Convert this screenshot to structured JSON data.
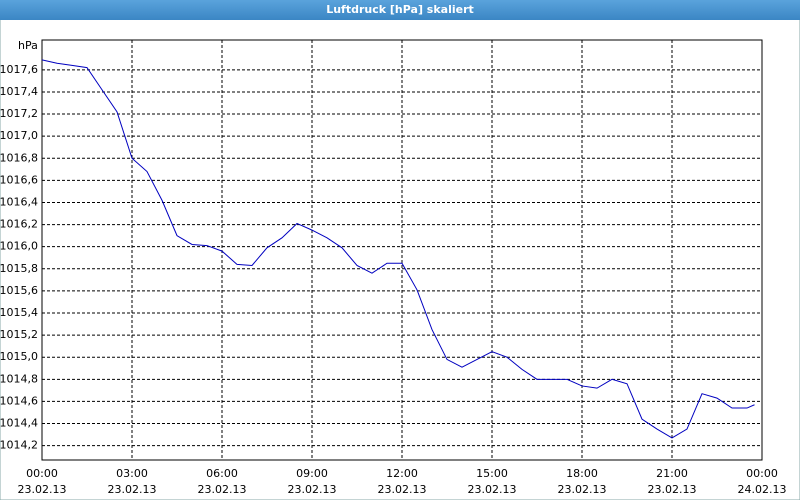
{
  "chart_data": {
    "type": "line",
    "title": "Luftdruck [hPa] skaliert",
    "ylabel": "hPa",
    "x": [
      0,
      0.5,
      1,
      1.5,
      2,
      2.5,
      3,
      3.5,
      4,
      4.5,
      5,
      5.5,
      6,
      6.5,
      7,
      7.5,
      8,
      8.5,
      9,
      9.5,
      10,
      10.5,
      11,
      11.5,
      12,
      12.5,
      13,
      13.5,
      14,
      14.5,
      15,
      15.5,
      16,
      16.5,
      17,
      17.5,
      18,
      18.5,
      19,
      19.5,
      20,
      20.5,
      21,
      21.5,
      22,
      22.5,
      23,
      23.5,
      23.75
    ],
    "series": [
      {
        "name": "Luftdruck",
        "color": "#0000c0",
        "values": [
          1017.69,
          1017.66,
          1017.64,
          1017.62,
          1017.42,
          1017.22,
          1016.8,
          1016.68,
          1016.42,
          1016.1,
          1016.02,
          1016.01,
          1015.96,
          1015.84,
          1015.83,
          1015.99,
          1016.08,
          1016.21,
          1016.15,
          1016.08,
          1015.99,
          1015.83,
          1015.76,
          1015.85,
          1015.85,
          1015.61,
          1015.25,
          1014.98,
          1014.91,
          1014.98,
          1015.05,
          1015.0,
          1014.89,
          1014.8,
          1014.8,
          1014.8,
          1014.74,
          1014.72,
          1014.8,
          1014.76,
          1014.44,
          1014.35,
          1014.27,
          1014.35,
          1014.67,
          1014.63,
          1014.54,
          1014.54,
          1014.57
        ]
      }
    ],
    "xlim": [
      0,
      24
    ],
    "xticks": [
      {
        "value": 0,
        "label": [
          "00:00",
          "23.02.13"
        ]
      },
      {
        "value": 3,
        "label": [
          "03:00",
          "23.02.13"
        ]
      },
      {
        "value": 6,
        "label": [
          "06:00",
          "23.02.13"
        ]
      },
      {
        "value": 9,
        "label": [
          "09:00",
          "23.02.13"
        ]
      },
      {
        "value": 12,
        "label": [
          "12:00",
          "23.02.13"
        ]
      },
      {
        "value": 15,
        "label": [
          "15:00",
          "23.02.13"
        ]
      },
      {
        "value": 18,
        "label": [
          "18:00",
          "23.02.13"
        ]
      },
      {
        "value": 21,
        "label": [
          "21:00",
          "23.02.13"
        ]
      },
      {
        "value": 24,
        "label": [
          "00:00",
          "24.02.13"
        ]
      }
    ],
    "ylim": [
      1014.07,
      1017.87
    ],
    "yticks": [
      {
        "value": 1014.2,
        "label": "1014,2"
      },
      {
        "value": 1014.4,
        "label": "1014,4"
      },
      {
        "value": 1014.6,
        "label": "1014,6"
      },
      {
        "value": 1014.8,
        "label": "1014,8"
      },
      {
        "value": 1015.0,
        "label": "1015,0"
      },
      {
        "value": 1015.2,
        "label": "1015,2"
      },
      {
        "value": 1015.4,
        "label": "1015,4"
      },
      {
        "value": 1015.6,
        "label": "1015,6"
      },
      {
        "value": 1015.8,
        "label": "1015,8"
      },
      {
        "value": 1016.0,
        "label": "1016,0"
      },
      {
        "value": 1016.2,
        "label": "1016,2"
      },
      {
        "value": 1016.4,
        "label": "1016,4"
      },
      {
        "value": 1016.6,
        "label": "1016,6"
      },
      {
        "value": 1016.8,
        "label": "1016,8"
      },
      {
        "value": 1017.0,
        "label": "1017,0"
      },
      {
        "value": 1017.2,
        "label": "1017,2"
      },
      {
        "value": 1017.4,
        "label": "1017,4"
      },
      {
        "value": 1017.6,
        "label": "1017,6"
      }
    ],
    "grid": true
  }
}
